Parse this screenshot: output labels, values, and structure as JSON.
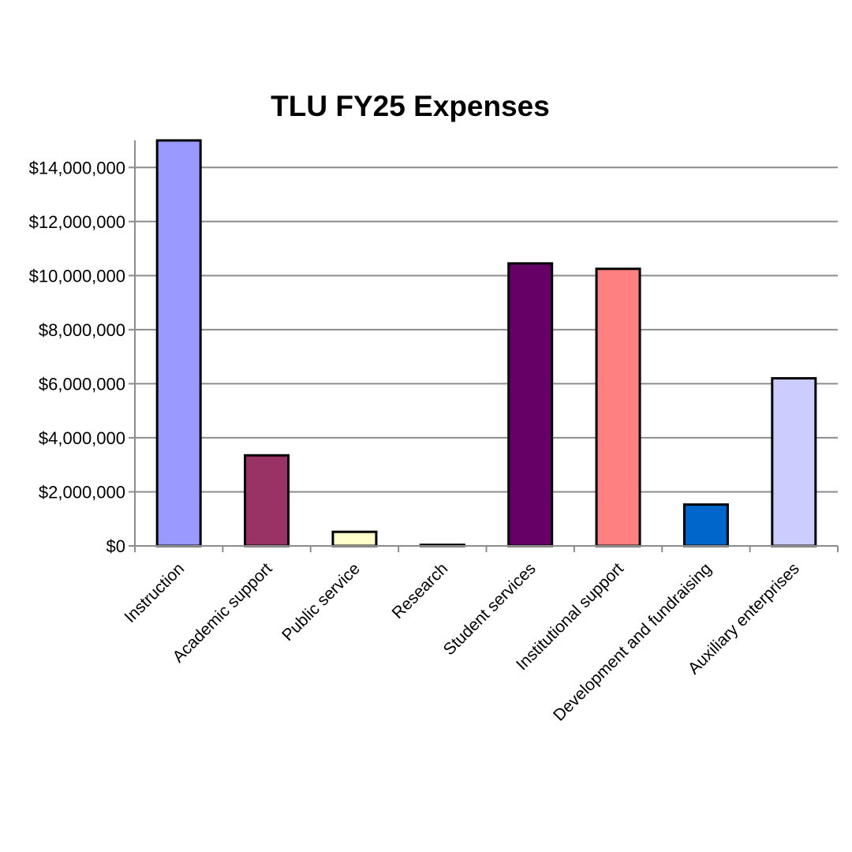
{
  "chart_data": {
    "type": "bar",
    "title": "TLU FY25 Expenses",
    "xlabel": "",
    "ylabel": "",
    "ylim": [
      0,
      15000000
    ],
    "yticks": [
      0,
      2000000,
      4000000,
      6000000,
      8000000,
      10000000,
      12000000,
      14000000
    ],
    "ytick_labels": [
      "$0",
      "$2,000,000",
      "$4,000,000",
      "$6,000,000",
      "$8,000,000",
      "$10,000,000",
      "$12,000,000",
      "$14,000,000"
    ],
    "grid": true,
    "legend": "none",
    "categories": [
      "Instruction",
      "Academic support",
      "Public service",
      "Research",
      "Student services",
      "Institutional support",
      "Development and fundraising",
      "Auxiliary enterprises"
    ],
    "values": [
      15000000,
      3350000,
      520000,
      40000,
      10450000,
      10250000,
      1530000,
      6200000
    ],
    "colors": [
      "#9999ff",
      "#993366",
      "#ffffcc",
      "#ccffff",
      "#660066",
      "#ff8080",
      "#0066cc",
      "#ccccff"
    ],
    "bar_outline": "#000000",
    "grid_color": "#8c8c8c",
    "axis_color": "#8c8c8c"
  }
}
